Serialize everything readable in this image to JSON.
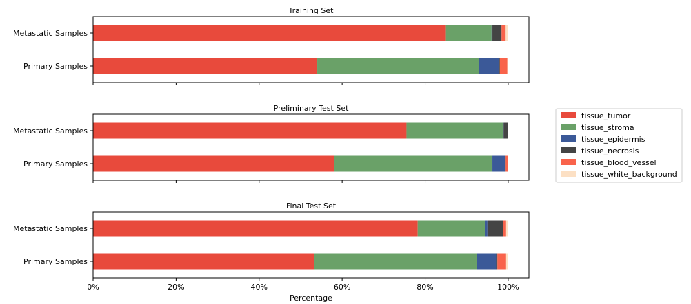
{
  "chart_data": {
    "type": "bar",
    "orientation": "horizontal",
    "stacked": true,
    "xlabel": "Percentage",
    "xticks": [
      "0%",
      "20%",
      "40%",
      "60%",
      "80%",
      "100%"
    ],
    "xlim": [
      0,
      105
    ],
    "grid": false,
    "legend_position": "right",
    "legend": [
      {
        "name": "tissue_tumor",
        "color": "#e84a3c"
      },
      {
        "name": "tissue_stroma",
        "color": "#6aa168"
      },
      {
        "name": "tissue_epidermis",
        "color": "#3b5998"
      },
      {
        "name": "tissue_necrosis",
        "color": "#444444"
      },
      {
        "name": "tissue_blood_vessel",
        "color": "#f9634b"
      },
      {
        "name": "tissue_white_background",
        "color": "#fce0c4"
      }
    ],
    "panels": [
      {
        "title": "Training Set",
        "categories": [
          "Metastatic Samples",
          "Primary Samples"
        ],
        "values": [
          [
            85.0,
            11.0,
            0.2,
            2.2,
            1.0,
            0.6
          ],
          [
            54.0,
            39.0,
            4.8,
            0.2,
            1.8,
            0.2
          ]
        ]
      },
      {
        "title": "Preliminary Test Set",
        "categories": [
          "Metastatic Samples",
          "Primary Samples"
        ],
        "values": [
          [
            75.5,
            23.3,
            0.1,
            1.0,
            0.1,
            0.0
          ],
          [
            58.0,
            38.2,
            3.0,
            0.2,
            0.6,
            0.0
          ]
        ]
      },
      {
        "title": "Final Test Set",
        "categories": [
          "Metastatic Samples",
          "Primary Samples"
        ],
        "values": [
          [
            78.2,
            16.3,
            0.5,
            3.7,
            0.8,
            0.5
          ],
          [
            53.2,
            39.2,
            4.7,
            0.3,
            2.1,
            0.5
          ]
        ]
      }
    ]
  }
}
